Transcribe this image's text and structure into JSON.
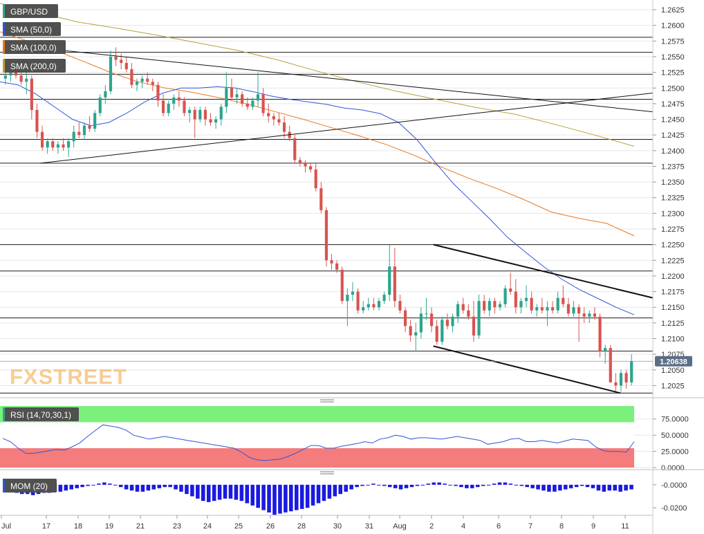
{
  "symbol": "GBP/USD",
  "indicators": {
    "sma50": "SMA (50,0)",
    "sma100": "SMA (100,0)",
    "sma200": "SMA (200,0)",
    "rsi": "RSI (14,70,30,1)",
    "mom": "MOM (20)"
  },
  "watermark": "FXSTREET",
  "last_price": "1.20638",
  "colors": {
    "up": "#2ca58d",
    "down": "#d9534f",
    "sma50": "#2f55d4",
    "sma100": "#e8771f",
    "sma200": "#b5a23a",
    "rsi_line": "#2f55d4",
    "overbought_band": "#7cf07c",
    "oversold_band": "#f47c7c",
    "mom_bar": "#1a1ae0",
    "accent": "#f2a33a"
  },
  "chart_data": [
    {
      "type": "candlestick",
      "title": "GBP/USD",
      "x_labels": [
        "Jul",
        "17",
        "18",
        "19",
        "21",
        "23",
        "24",
        "25",
        "26",
        "28",
        "30",
        "31",
        "Aug",
        "2",
        "4",
        "6",
        "7",
        "8",
        "9",
        "11"
      ],
      "y_ticks": [
        "1.2625",
        "1.2600",
        "1.2575",
        "1.2550",
        "1.2525",
        "1.2500",
        "1.2475",
        "1.2450",
        "1.2425",
        "1.2400",
        "1.2375",
        "1.2350",
        "1.2325",
        "1.2300",
        "1.2275",
        "1.2250",
        "1.2225",
        "1.2200",
        "1.2175",
        "1.2150",
        "1.2125",
        "1.2100",
        "1.2075",
        "1.2050",
        "1.2025"
      ],
      "ylim": [
        1.201,
        1.2635
      ],
      "horizontal_levels": [
        1.2581,
        1.2557,
        1.2522,
        1.2482,
        1.2418,
        1.238,
        1.225,
        1.2208,
        1.2133,
        1.208,
        1.2013
      ],
      "trendlines": [
        {
          "from": [
            "Jul 17",
            1.238
          ],
          "to": [
            "Aug 11",
            1.2492
          ]
        },
        {
          "from": [
            "Jul 16",
            1.257
          ],
          "to": [
            "Aug 11",
            1.2462
          ]
        },
        {
          "from": [
            "Aug 1",
            1.225
          ],
          "to": [
            "Aug 11",
            1.2165
          ]
        },
        {
          "from": [
            "Aug 1",
            1.2088
          ],
          "to": [
            "Aug 10",
            1.2013
          ]
        }
      ],
      "last_price": 1.20638,
      "candles": [
        [
          1.2515,
          1.253,
          1.2505,
          1.252
        ],
        [
          1.252,
          1.253,
          1.251,
          1.2525
        ],
        [
          1.2525,
          1.253,
          1.2515,
          1.252
        ],
        [
          1.252,
          1.2525,
          1.2505,
          1.251
        ],
        [
          1.251,
          1.2525,
          1.249,
          1.2515
        ],
        [
          1.2515,
          1.252,
          1.245,
          1.2465
        ],
        [
          1.2465,
          1.2475,
          1.242,
          1.243
        ],
        [
          1.243,
          1.244,
          1.24,
          1.2405
        ],
        [
          1.2405,
          1.242,
          1.2395,
          1.2415
        ],
        [
          1.2415,
          1.242,
          1.24,
          1.2405
        ],
        [
          1.2405,
          1.2415,
          1.2395,
          1.241
        ],
        [
          1.241,
          1.242,
          1.24,
          1.2405
        ],
        [
          1.2405,
          1.242,
          1.239,
          1.2415
        ],
        [
          1.2415,
          1.244,
          1.2405,
          1.243
        ],
        [
          1.243,
          1.2445,
          1.242,
          1.2425
        ],
        [
          1.2425,
          1.2445,
          1.2418,
          1.244
        ],
        [
          1.244,
          1.2455,
          1.243,
          1.2435
        ],
        [
          1.2435,
          1.2465,
          1.243,
          1.246
        ],
        [
          1.246,
          1.249,
          1.2455,
          1.2485
        ],
        [
          1.2485,
          1.2505,
          1.2475,
          1.2495
        ],
        [
          1.2495,
          1.256,
          1.249,
          1.255
        ],
        [
          1.255,
          1.2565,
          1.2535,
          1.2545
        ],
        [
          1.2545,
          1.2555,
          1.253,
          1.254
        ],
        [
          1.254,
          1.255,
          1.2525,
          1.253
        ],
        [
          1.253,
          1.254,
          1.25,
          1.2505
        ],
        [
          1.2505,
          1.2515,
          1.2495,
          1.251
        ],
        [
          1.251,
          1.252,
          1.25,
          1.2515
        ],
        [
          1.2515,
          1.2525,
          1.2505,
          1.251
        ],
        [
          1.251,
          1.2515,
          1.2495,
          1.2505
        ],
        [
          1.2505,
          1.251,
          1.247,
          1.248
        ],
        [
          1.248,
          1.249,
          1.2455,
          1.246
        ],
        [
          1.246,
          1.248,
          1.2455,
          1.2475
        ],
        [
          1.2475,
          1.249,
          1.2465,
          1.2485
        ],
        [
          1.2485,
          1.2495,
          1.247,
          1.248
        ],
        [
          1.248,
          1.2485,
          1.2455,
          1.246
        ],
        [
          1.246,
          1.247,
          1.2445,
          1.2465
        ],
        [
          1.2465,
          1.247,
          1.242,
          1.245
        ],
        [
          1.245,
          1.247,
          1.2445,
          1.2465
        ],
        [
          1.2465,
          1.247,
          1.244,
          1.245
        ],
        [
          1.245,
          1.246,
          1.244,
          1.2445
        ],
        [
          1.2445,
          1.2455,
          1.2435,
          1.245
        ],
        [
          1.245,
          1.2475,
          1.244,
          1.247
        ],
        [
          1.247,
          1.2525,
          1.246,
          1.25
        ],
        [
          1.25,
          1.2515,
          1.248,
          1.2485
        ],
        [
          1.2485,
          1.25,
          1.2475,
          1.249
        ],
        [
          1.249,
          1.2495,
          1.247,
          1.2475
        ],
        [
          1.2475,
          1.2485,
          1.2465,
          1.247
        ],
        [
          1.247,
          1.2485,
          1.2465,
          1.248
        ],
        [
          1.248,
          1.2525,
          1.247,
          1.249
        ],
        [
          1.249,
          1.25,
          1.2455,
          1.246
        ],
        [
          1.246,
          1.2475,
          1.2445,
          1.2455
        ],
        [
          1.2455,
          1.246,
          1.244,
          1.245
        ],
        [
          1.245,
          1.246,
          1.244,
          1.2445
        ],
        [
          1.2445,
          1.2455,
          1.242,
          1.243
        ],
        [
          1.243,
          1.244,
          1.2415,
          1.242
        ],
        [
          1.242,
          1.2425,
          1.238,
          1.2385
        ],
        [
          1.2385,
          1.239,
          1.2375,
          1.238
        ],
        [
          1.238,
          1.2385,
          1.2365,
          1.2375
        ],
        [
          1.2375,
          1.238,
          1.2365,
          1.237
        ],
        [
          1.237,
          1.238,
          1.2335,
          1.234
        ],
        [
          1.234,
          1.235,
          1.23,
          1.2305
        ],
        [
          1.2305,
          1.231,
          1.2215,
          1.2225
        ],
        [
          1.2225,
          1.2235,
          1.221,
          1.222
        ],
        [
          1.222,
          1.2225,
          1.2205,
          1.221
        ],
        [
          1.221,
          1.2215,
          1.2155,
          1.216
        ],
        [
          1.216,
          1.218,
          1.212,
          1.217
        ],
        [
          1.217,
          1.219,
          1.216,
          1.2175
        ],
        [
          1.2175,
          1.218,
          1.214,
          1.2145
        ],
        [
          1.2145,
          1.216,
          1.214,
          1.215
        ],
        [
          1.215,
          1.2165,
          1.2145,
          1.2155
        ],
        [
          1.2155,
          1.2165,
          1.2145,
          1.215
        ],
        [
          1.215,
          1.2165,
          1.2145,
          1.216
        ],
        [
          1.216,
          1.2175,
          1.2155,
          1.217
        ],
        [
          1.217,
          1.225,
          1.216,
          1.2215
        ],
        [
          1.2215,
          1.2245,
          1.215,
          1.216
        ],
        [
          1.216,
          1.217,
          1.214,
          1.2145
        ],
        [
          1.2145,
          1.215,
          1.211,
          1.212
        ],
        [
          1.212,
          1.213,
          1.2095,
          1.2105
        ],
        [
          1.2105,
          1.2125,
          1.208,
          1.211
        ],
        [
          1.211,
          1.215,
          1.21,
          1.214
        ],
        [
          1.214,
          1.2165,
          1.213,
          1.214
        ],
        [
          1.214,
          1.215,
          1.211,
          1.212
        ],
        [
          1.212,
          1.213,
          1.209,
          1.2095
        ],
        [
          1.2095,
          1.2135,
          1.209,
          1.213
        ],
        [
          1.213,
          1.214,
          1.2115,
          1.212
        ],
        [
          1.212,
          1.214,
          1.211,
          1.2135
        ],
        [
          1.2135,
          1.216,
          1.2125,
          1.2155
        ],
        [
          1.2155,
          1.2165,
          1.214,
          1.2145
        ],
        [
          1.2145,
          1.2155,
          1.213,
          1.2135
        ],
        [
          1.2135,
          1.216,
          1.2095,
          1.2105
        ],
        [
          1.2105,
          1.217,
          1.21,
          1.216
        ],
        [
          1.216,
          1.217,
          1.214,
          1.2145
        ],
        [
          1.2145,
          1.2165,
          1.2135,
          1.216
        ],
        [
          1.216,
          1.2165,
          1.214,
          1.215
        ],
        [
          1.215,
          1.216,
          1.2145,
          1.2155
        ],
        [
          1.2155,
          1.2185,
          1.215,
          1.218
        ],
        [
          1.218,
          1.2205,
          1.217,
          1.2175
        ],
        [
          1.2175,
          1.2195,
          1.214,
          1.215
        ],
        [
          1.215,
          1.2165,
          1.214,
          1.216
        ],
        [
          1.216,
          1.2185,
          1.215,
          1.2165
        ],
        [
          1.2165,
          1.2175,
          1.214,
          1.2145
        ],
        [
          1.2145,
          1.2155,
          1.2135,
          1.215
        ],
        [
          1.215,
          1.2165,
          1.214,
          1.2145
        ],
        [
          1.2145,
          1.216,
          1.212,
          1.215
        ],
        [
          1.215,
          1.216,
          1.214,
          1.2145
        ],
        [
          1.2145,
          1.2175,
          1.214,
          1.2165
        ],
        [
          1.2165,
          1.2185,
          1.215,
          1.2155
        ],
        [
          1.2155,
          1.2165,
          1.2135,
          1.214
        ],
        [
          1.214,
          1.216,
          1.2135,
          1.215
        ],
        [
          1.215,
          1.2155,
          1.2095,
          1.214
        ],
        [
          1.214,
          1.215,
          1.2125,
          1.2135
        ],
        [
          1.2135,
          1.2145,
          1.2125,
          1.214
        ],
        [
          1.214,
          1.215,
          1.213,
          1.2135
        ],
        [
          1.2135,
          1.214,
          1.207,
          1.208
        ],
        [
          1.208,
          1.209,
          1.206,
          1.2085
        ],
        [
          1.2085,
          1.209,
          1.203,
          1.203
        ],
        [
          1.203,
          1.2045,
          1.2015,
          1.2025
        ],
        [
          1.2025,
          1.205,
          1.2015,
          1.2045
        ],
        [
          1.2045,
          1.205,
          1.202,
          1.203
        ],
        [
          1.203,
          1.2075,
          1.2025,
          1.20638
        ]
      ],
      "sma50": [
        1.251,
        1.2505,
        1.249,
        1.247,
        1.245,
        1.244,
        1.2445,
        1.246,
        1.2478,
        1.2492,
        1.25,
        1.25,
        1.2502,
        1.25,
        1.2494,
        1.2487,
        1.2482,
        1.2478,
        1.2474,
        1.2468,
        1.2465,
        1.2459,
        1.2445,
        1.2418,
        1.2382,
        1.2348,
        1.232,
        1.2292,
        1.2262,
        1.2238,
        1.2215,
        1.2195,
        1.2178,
        1.2164,
        1.215,
        1.2138
      ],
      "sma100": [
        1.259,
        1.2575,
        1.256,
        1.2543,
        1.2525,
        1.251,
        1.25,
        1.2493,
        1.2484,
        1.2474,
        1.2462,
        1.245,
        1.2437,
        1.2424,
        1.241,
        1.2393,
        1.2374,
        1.2356,
        1.234,
        1.2322,
        1.2302,
        1.2292,
        1.2284,
        1.2264
      ],
      "sma200": [
        1.2635,
        1.262,
        1.2605,
        1.2595,
        1.2584,
        1.2572,
        1.256,
        1.2545,
        1.2527,
        1.251,
        1.2495,
        1.2482,
        1.2469,
        1.2458,
        1.2442,
        1.2425,
        1.2407
      ]
    },
    {
      "type": "line",
      "title": "RSI (14,70,30,1)",
      "y_ticks": [
        "75.0000",
        "50.0000",
        "25.0000",
        "0.0000"
      ],
      "ylim": [
        0,
        95
      ],
      "overbought": 70,
      "oversold": 30,
      "values": [
        45,
        40,
        30,
        22,
        22,
        24,
        26,
        28,
        27,
        32,
        38,
        48,
        57,
        66,
        64,
        62,
        58,
        50,
        47,
        44,
        46,
        48,
        46,
        44,
        42,
        40,
        38,
        36,
        34,
        32,
        30,
        24,
        16,
        12,
        11,
        12,
        13,
        17,
        22,
        28,
        34,
        34,
        30,
        30,
        33,
        35,
        37,
        40,
        38,
        44,
        46,
        50,
        48,
        44,
        46,
        46,
        45,
        44,
        46,
        48,
        46,
        44,
        42,
        36,
        38,
        40,
        44,
        45,
        40,
        40,
        42,
        40,
        38,
        41,
        44,
        43,
        42,
        32,
        26,
        25,
        25,
        24,
        40
      ]
    },
    {
      "type": "bar",
      "title": "MOM (20)",
      "y_ticks": [
        "-0.0000",
        "-0.0200"
      ],
      "ylim": [
        -0.0265,
        0.0095
      ],
      "values": [
        -0.005,
        -0.006,
        -0.007,
        -0.008,
        -0.008,
        -0.009,
        -0.008,
        -0.007,
        -0.007,
        -0.006,
        -0.006,
        -0.005,
        -0.004,
        -0.003,
        -0.002,
        -0.001,
        0.0,
        0.001,
        0.002,
        0.001,
        0.0,
        -0.002,
        -0.004,
        -0.005,
        -0.006,
        -0.006,
        -0.005,
        -0.004,
        -0.003,
        -0.002,
        -0.002,
        -0.004,
        -0.006,
        -0.008,
        -0.01,
        -0.012,
        -0.014,
        -0.015,
        -0.014,
        -0.013,
        -0.012,
        -0.012,
        -0.013,
        -0.014,
        -0.016,
        -0.018,
        -0.02,
        -0.022,
        -0.024,
        -0.026,
        -0.025,
        -0.024,
        -0.023,
        -0.022,
        -0.021,
        -0.02,
        -0.018,
        -0.016,
        -0.014,
        -0.012,
        -0.01,
        -0.008,
        -0.006,
        -0.004,
        -0.002,
        -0.001,
        0.0,
        0.001,
        0.0,
        -0.001,
        -0.002,
        -0.003,
        -0.004,
        -0.003,
        -0.002,
        -0.001,
        0.0,
        0.001,
        0.002,
        0.002,
        0.001,
        0.0,
        -0.001,
        -0.002,
        -0.003,
        -0.003,
        -0.002,
        -0.001,
        0.0,
        0.001,
        0.002,
        0.002,
        0.001,
        0.0,
        -0.001,
        -0.002,
        -0.003,
        -0.004,
        -0.005,
        -0.006,
        -0.006,
        -0.005,
        -0.004,
        -0.003,
        -0.002,
        -0.001,
        -0.002,
        -0.003,
        -0.005,
        -0.006,
        -0.005,
        -0.005,
        -0.006,
        -0.005,
        -0.004
      ]
    }
  ]
}
